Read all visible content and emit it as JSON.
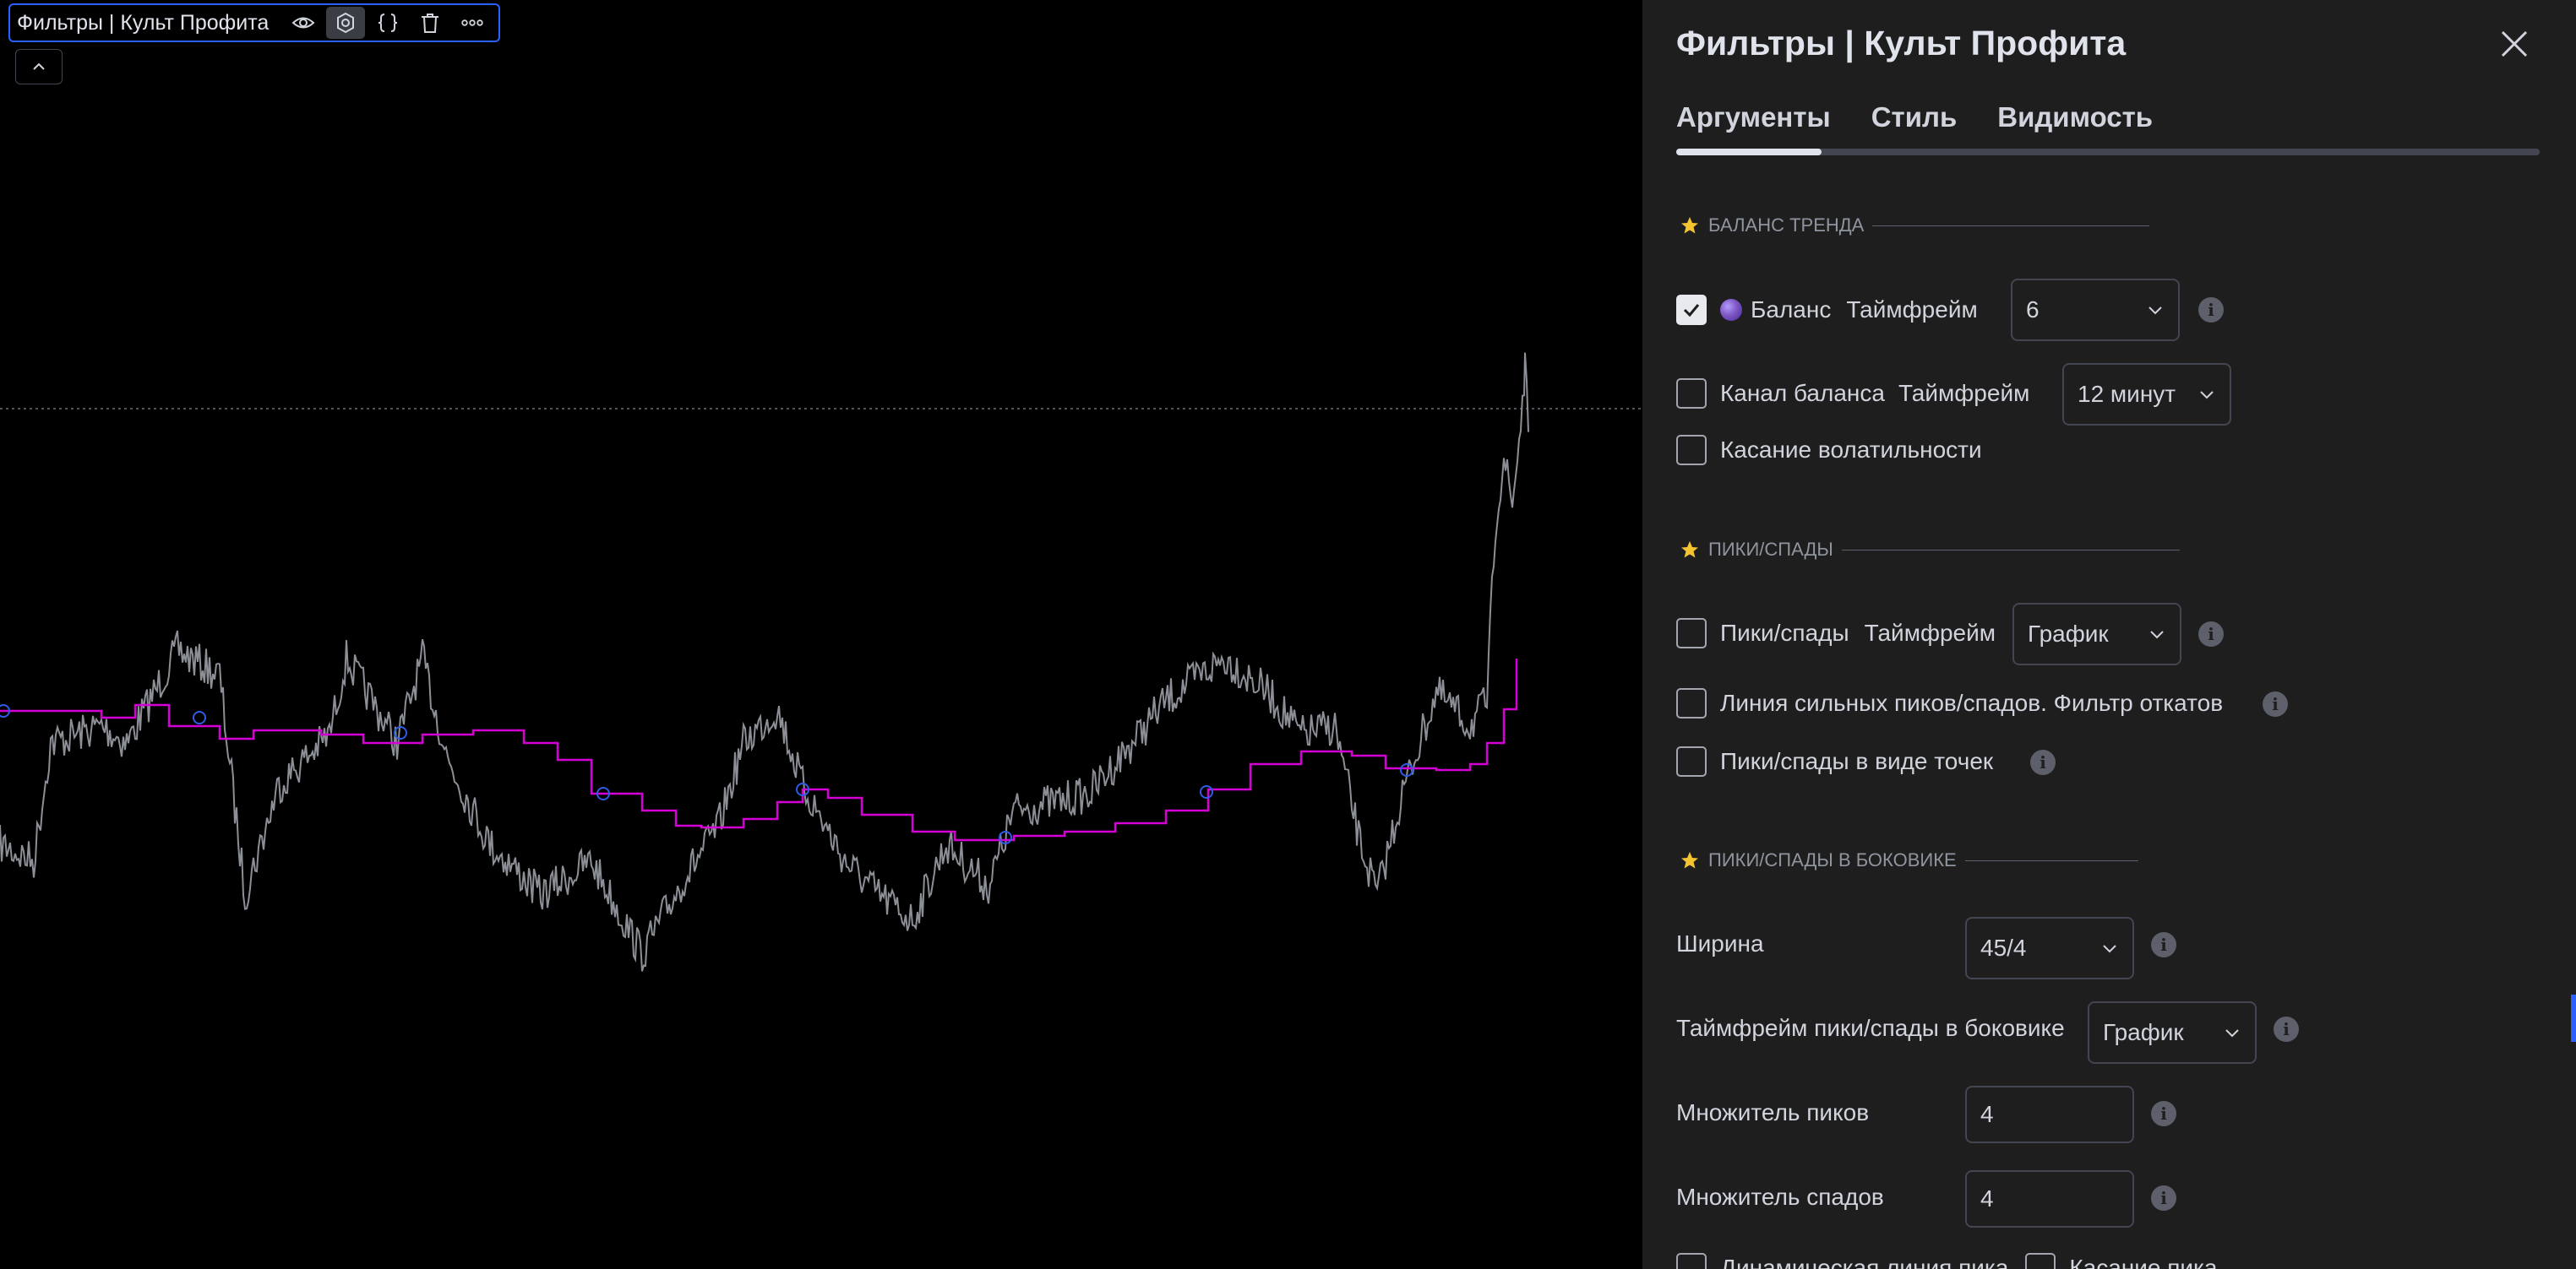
{
  "legend": {
    "title": "Фильтры | Культ Профита",
    "buttons": [
      "eye-icon",
      "settings-icon",
      "source-code-icon",
      "trash-icon",
      "more-icon"
    ]
  },
  "panel": {
    "title": "Фильтры | Культ Профита",
    "tabs": [
      {
        "label": "Аргументы",
        "active": true
      },
      {
        "label": "Стиль",
        "active": false
      },
      {
        "label": "Видимость",
        "active": false
      }
    ],
    "section1": {
      "title": "БАЛАНС ТРЕНДА",
      "balance": {
        "checked": true,
        "label": "Баланс",
        "tf_label": "Таймфрейм",
        "tf_value": "6"
      },
      "channel": {
        "checked": false,
        "label": "Канал баланса",
        "tf_label": "Таймфрейм",
        "tf_value": "12 минут"
      },
      "touch": {
        "checked": false,
        "label": "Касание волатильности"
      }
    },
    "section2": {
      "title": "ПИКИ/СПАДЫ",
      "peaks": {
        "checked": false,
        "label": "Пики/спады",
        "tf_label": "Таймфрейм",
        "tf_value": "График"
      },
      "strong_line": {
        "checked": false,
        "label": "Линия сильных пиков/спадов. Фильтр откатов"
      },
      "dots": {
        "checked": false,
        "label": "Пики/спады в виде точек"
      }
    },
    "section3": {
      "title": "ПИКИ/СПАДЫ В БОКОВИКЕ",
      "width": {
        "label": "Ширина",
        "value": "45/4"
      },
      "timeframe": {
        "label": "Таймфрейм пики/спады в боковике",
        "value": "График"
      },
      "peak_mult": {
        "label": "Множитель пиков",
        "value": "4"
      },
      "dip_mult": {
        "label": "Множитель спадов",
        "value": "4"
      },
      "dynamic": {
        "checked": false,
        "label": "Динамическая линия пика"
      },
      "touch_peak": {
        "checked": false,
        "label": "Касание пика"
      }
    }
  },
  "colors": {
    "price": "#8c8f96",
    "balance_line": "#d500d5",
    "markers": "#2f5ce6",
    "accent": "#2962ff",
    "panel_bg": "#1e1e1e"
  }
}
